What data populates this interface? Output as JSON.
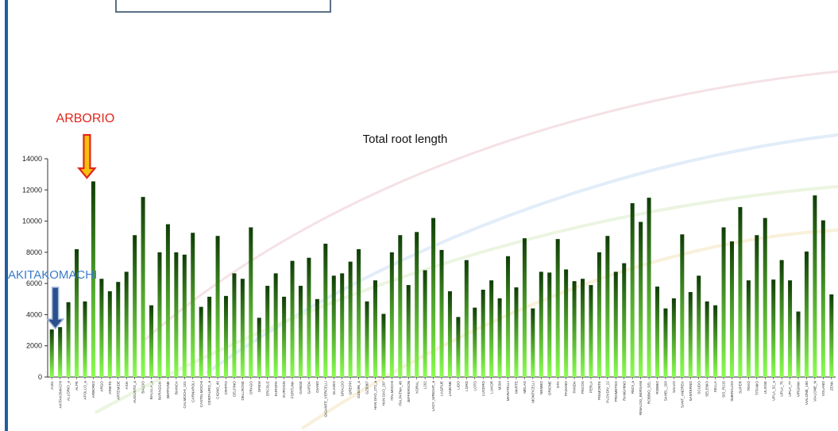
{
  "colors": {
    "bar_top": "#0f3d06",
    "bar_bottom": "#8aff50",
    "axis": "#333333",
    "annot_red": "#e3261c",
    "annot_blue": "#3b7bc8"
  },
  "chart_data": {
    "type": "bar",
    "title": "Total root length",
    "xlabel": "",
    "ylabel": "",
    "ylim": [
      0,
      14000
    ],
    "yticks": [
      0,
      2000,
      4000,
      6000,
      8000,
      10000,
      12000,
      14000
    ],
    "grid": false,
    "legend": "none",
    "categories": [
      "A201",
      "AKITAKOMACHI",
      "ALLORIO_a",
      "ALPE",
      "APOLLO_a",
      "ARBORIO",
      "ARGO",
      "ARIETE",
      "ARTEMIDE",
      "ASIA",
      "AUGUSTO_a",
      "BALDO",
      "BALILLA_a",
      "BARAGGIA",
      "BERTONE",
      "BIANCA",
      "CALMOCHI_101",
      "CARNAROLI",
      "CASTELMOCHI",
      "CENTAURO_a",
      "CIGNO_40",
      "CRIPTO",
      "DELFINO",
      "DELLROSE",
      "DRAGO",
      "DREW",
      "ERCOLE",
      "EUROPA",
      "EUROSIS",
      "FORTUNA",
      "GANGE",
      "GARDA",
      "GIANO",
      "GIGANTE_VERCELLI",
      "GLADIO",
      "GRALDO",
      "GREPPI",
      "GZ6296_a",
      "GZ8367",
      "HAN DAO_272_a",
      "HAN DAO_297",
      "ITALMOCHI",
      "ITALPATNA_48",
      "JEFFERSON",
      "KORAL",
      "L202",
      "LADY_WRIGHT_a",
      "LAGRUE",
      "LAMONE",
      "LIDO",
      "LORD",
      "LOTO",
      "LUCERO",
      "LUXOR",
      "M204",
      "MARATELLI",
      "MARTE",
      "MELAS",
      "MONTICELLI",
      "NEMBO",
      "ORIONE",
      "OTA",
      "PADANO",
      "PANDA",
      "PECOS",
      "PERLA",
      "PIEMONTE",
      "PLOVDIV_22",
      "PROMETEO",
      "RANGHINO",
      "REDI_a",
      "RINALDO_BERSANI",
      "ROBBIO_SEL",
      "ROBBO",
      "SAHEL_203",
      "SALVO",
      "SANT_ANDREA",
      "SANTERNO",
      "SCUDO",
      "SELENIO",
      "SELLA",
      "SIS_R215",
      "SMERALDO",
      "SUPER",
      "TEKO",
      "TITANIO",
      "ULISSE",
      "UPLA_32_a",
      "UPLA_75",
      "UPLA_77",
      "VIRGINIA",
      "VIALONE_190",
      "VIALONE_N",
      "VOLANO",
      "ZENA"
    ],
    "values": [
      3050,
      3200,
      4800,
      8200,
      4850,
      12550,
      6300,
      5500,
      6100,
      6750,
      9100,
      11550,
      4600,
      8000,
      9800,
      8000,
      7850,
      9250,
      4500,
      5150,
      9050,
      5200,
      6650,
      6300,
      9600,
      3800,
      5850,
      6650,
      5150,
      7450,
      5850,
      7650,
      5000,
      8550,
      6500,
      6650,
      7400,
      8200,
      4850,
      6200,
      4050,
      8000,
      9100,
      5900,
      9300,
      6850,
      10200,
      8150,
      5500,
      3850,
      7500,
      4450,
      5600,
      6200,
      5050,
      7750,
      5750,
      8900,
      4400,
      6750,
      6700,
      8850,
      6900,
      6150,
      6300,
      5900,
      8000,
      9050,
      6750,
      7300,
      11150,
      9950,
      11500,
      5800,
      4400,
      5050,
      9150,
      5450,
      6500,
      4850,
      4600,
      9600,
      8700,
      10900,
      6200,
      9100,
      10200,
      6250,
      7500,
      6200,
      4200,
      8050,
      11650,
      10050,
      5300
    ]
  },
  "annotations": {
    "arborio": {
      "label": "ARBORIO",
      "target": "ARBORIO"
    },
    "akitakomachi": {
      "label": "AKITAKOMACHI",
      "target": "AKITAKOMACHI"
    }
  }
}
